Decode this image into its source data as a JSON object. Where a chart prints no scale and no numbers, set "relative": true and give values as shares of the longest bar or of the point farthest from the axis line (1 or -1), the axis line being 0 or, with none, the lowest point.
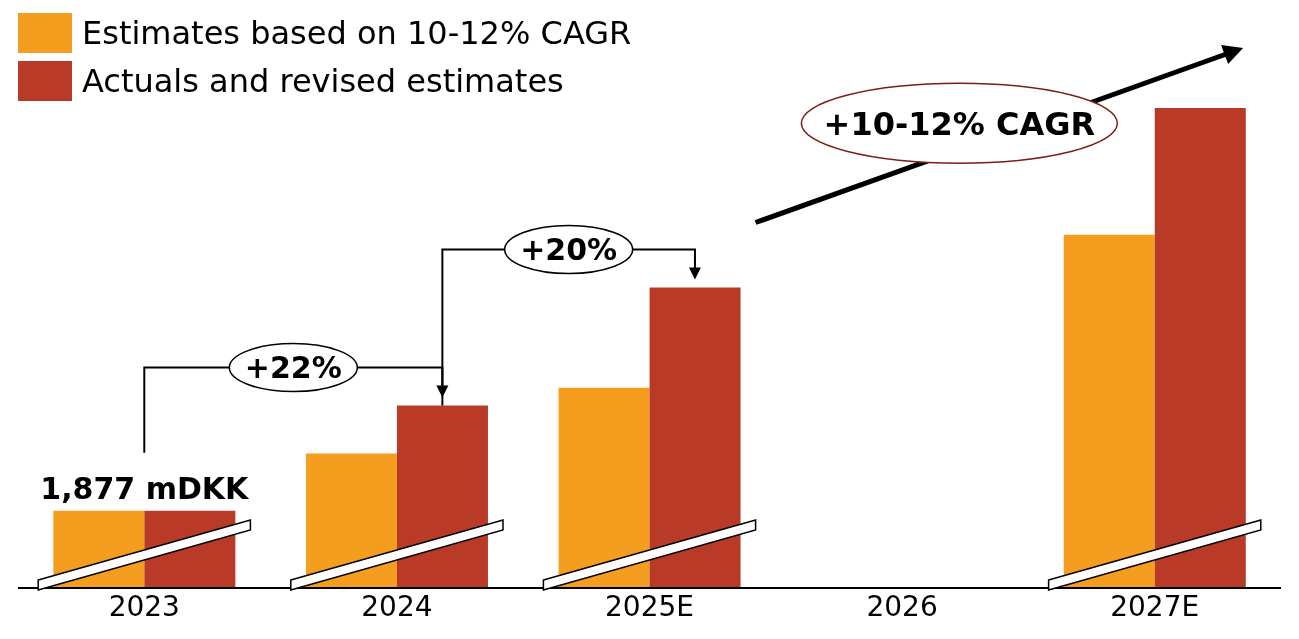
{
  "chart_data": {
    "type": "bar",
    "relative": true,
    "categories": [
      "2023",
      "2024",
      "2025E",
      "2026",
      "2027E"
    ],
    "series": [
      {
        "name": "Estimates based on 10-12% CAGR",
        "color": "#f59d1f",
        "values": [
          0.161,
          0.28,
          0.417,
          null,
          0.736
        ]
      },
      {
        "name": "Actuals and revised estimates",
        "color": "#b83a27",
        "values": [
          0.161,
          0.38,
          0.626,
          null,
          1
        ]
      }
    ],
    "legend": "top left",
    "annotations": [
      {
        "text": "1,877 mDKK",
        "x": "2023",
        "y": 0.161
      },
      "+22%",
      "+20%",
      "+10-12% CAGR"
    ]
  }
}
